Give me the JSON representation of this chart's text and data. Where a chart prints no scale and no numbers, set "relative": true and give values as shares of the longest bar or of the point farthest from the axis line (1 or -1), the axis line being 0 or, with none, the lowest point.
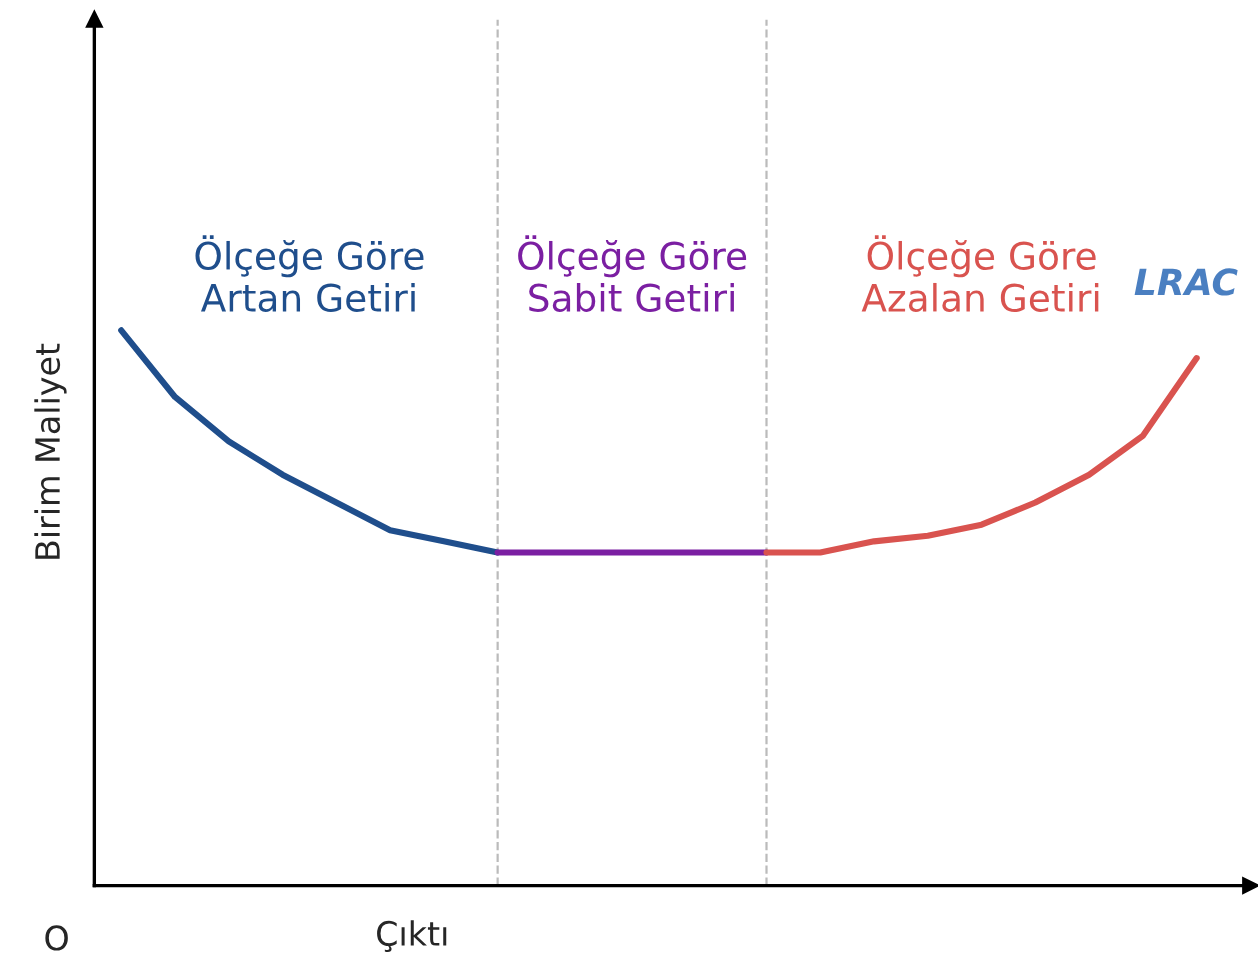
{
  "chart_data": {
    "type": "line",
    "relative": true,
    "xlabel": "Çıktı",
    "ylabel": "Birim Maliyet",
    "categories": [
      null,
      null,
      null,
      null,
      null,
      null,
      null,
      null,
      null,
      null,
      null,
      null,
      null,
      null,
      null,
      null,
      null,
      null,
      null,
      null,
      null
    ],
    "series": [
      {
        "name": "Ölçeğe Göre\nArtan Getiri",
        "color": "#1f4e8c",
        "values": [
          1.0,
          0.88,
          0.8,
          0.74,
          0.69,
          0.64,
          0.62,
          0.6,
          null,
          null,
          null,
          null,
          null,
          null,
          null,
          null,
          null,
          null,
          null,
          null,
          null
        ]
      },
      {
        "name": "Ölçeğe Göre\nSabit Getiri",
        "color": "#7b1fa2",
        "values": [
          null,
          null,
          null,
          null,
          null,
          null,
          null,
          0.6,
          0.6,
          0.6,
          0.6,
          0.6,
          0.6,
          null,
          null,
          null,
          null,
          null,
          null,
          null,
          null
        ]
      },
      {
        "name": "Ölçeğe Göre\nAzalan Getiri",
        "color": "#d9534f",
        "values": [
          null,
          null,
          null,
          null,
          null,
          null,
          null,
          null,
          null,
          null,
          null,
          null,
          0.6,
          0.6,
          0.62,
          0.63,
          0.65,
          0.69,
          0.74,
          0.81,
          0.95
        ]
      }
    ],
    "annotations": [
      "LRAC",
      "O"
    ],
    "tick_labels": false,
    "legend": false,
    "marker": "none",
    "line_style": "solid"
  }
}
